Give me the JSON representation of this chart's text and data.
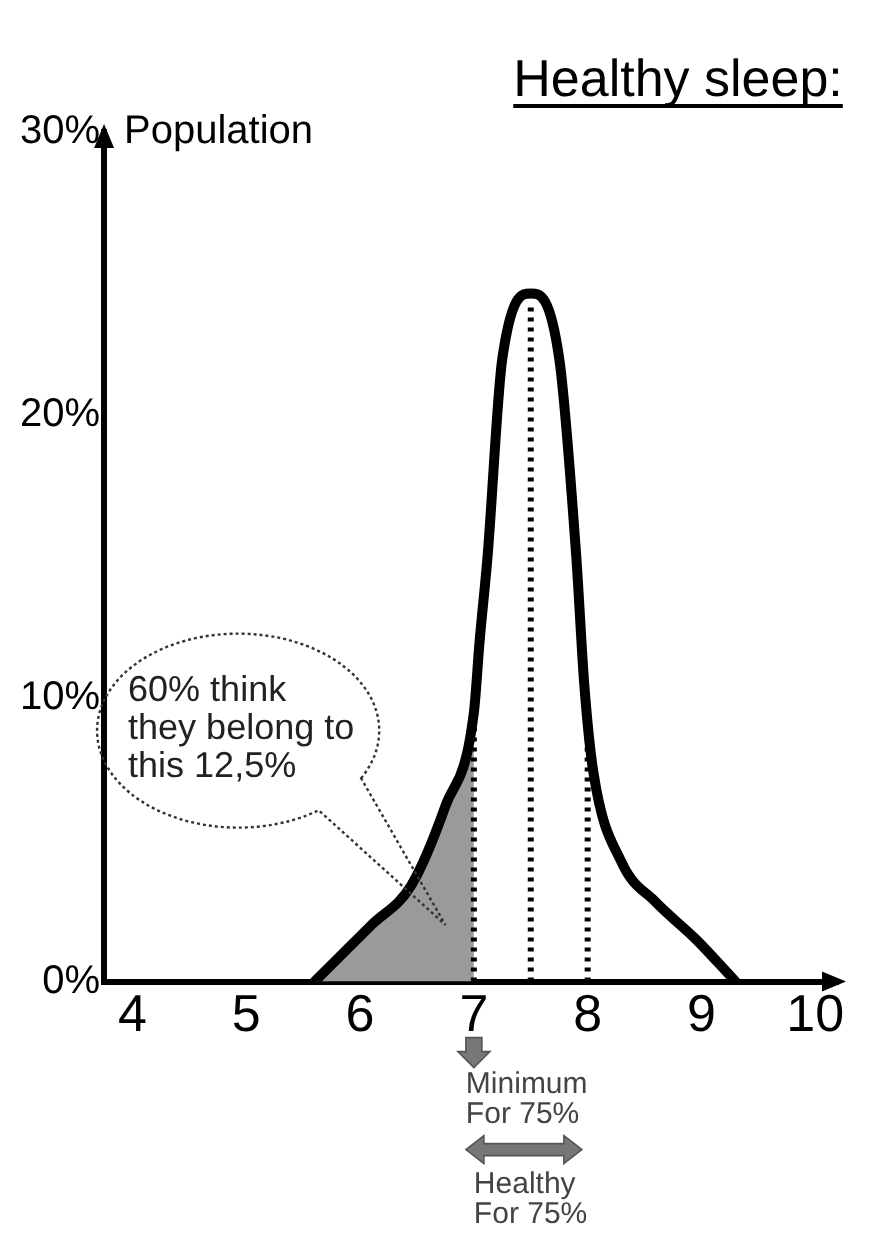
{
  "chart_data": {
    "type": "line",
    "title": "Healthy sleep:",
    "ylabel": "Population",
    "xlim": [
      3.75,
      10.2
    ],
    "xticks": [
      4,
      5,
      6,
      7,
      8,
      9,
      10
    ],
    "ylim": [
      0,
      30
    ],
    "yticks": [
      {
        "value": 0,
        "label": "0%"
      },
      {
        "value": 10,
        "label": "10%"
      },
      {
        "value": 20,
        "label": "20%"
      },
      {
        "value": 30,
        "label": "30%"
      }
    ],
    "series": [
      {
        "color": "#000000",
        "x": [
          5.6,
          6.1,
          6.45,
          6.75,
          7.0,
          7.05,
          7.12,
          7.25,
          7.5,
          7.75,
          7.9,
          7.97,
          8.05,
          8.3,
          8.6,
          8.95,
          9.3
        ],
        "values": [
          0,
          2,
          3.4,
          6.2,
          9.5,
          12,
          15,
          22,
          24.3,
          22,
          15,
          10.5,
          7.4,
          4.2,
          2.8,
          1.5,
          0
        ]
      },
      {
        "type": "area",
        "color": "#9a9a9a",
        "x": [
          5.6,
          6.1,
          6.45,
          6.75,
          7.0
        ],
        "values": [
          0,
          2,
          3.4,
          6.2,
          9.5
        ]
      }
    ],
    "ref_lines": [
      {
        "axis": "x",
        "value": 7,
        "line_style": "dotted"
      },
      {
        "axis": "x",
        "value": 7.5,
        "line_style": "dotted"
      },
      {
        "axis": "x",
        "value": 8,
        "line_style": "dotted"
      }
    ],
    "annotations": [
      "60% think they belong to this 12,5%",
      "Minimum For 75%",
      "Healthy For 75%"
    ],
    "grid": false,
    "legend": false,
    "marker": "none",
    "line_style": "solid"
  }
}
